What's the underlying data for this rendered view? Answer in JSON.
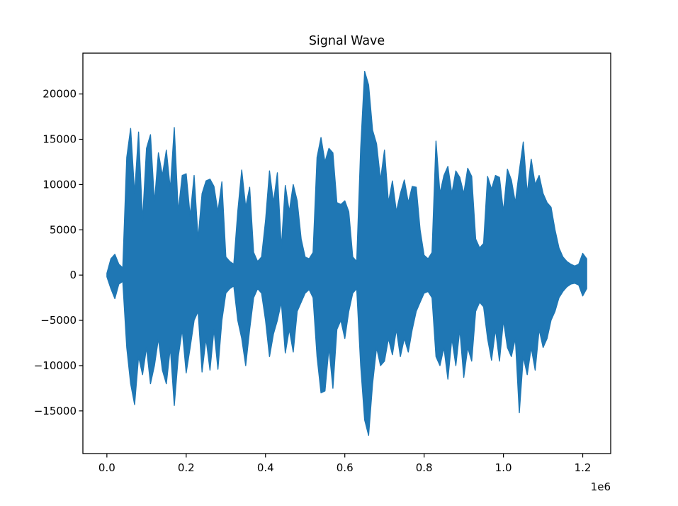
{
  "figure": {
    "background": "#ffffff",
    "axes_background": "#ffffff",
    "spine_color": "#000000",
    "tick_color": "#000000"
  },
  "chart_data": {
    "type": "line",
    "title": "Signal Wave",
    "xlabel": "",
    "ylabel": "",
    "legend": null,
    "grid": false,
    "line_color": "#1f77b4",
    "x_axis": {
      "tick_labels": [
        "0.0",
        "0.2",
        "0.4",
        "0.6",
        "0.8",
        "1.0",
        "1.2"
      ],
      "tick_values": [
        0,
        200000,
        400000,
        600000,
        800000,
        1000000,
        1200000
      ],
      "offset_label": "1e6",
      "lim": [
        -60500,
        1270500
      ]
    },
    "y_axis": {
      "tick_labels": [
        "−15000",
        "−10000",
        "−5000",
        "0",
        "5000",
        "10000",
        "15000",
        "20000"
      ],
      "tick_values": [
        -15000,
        -10000,
        -5000,
        0,
        5000,
        10000,
        15000,
        20000
      ],
      "lim": [
        -19710,
        24510
      ]
    },
    "series": [
      {
        "name": "signal",
        "representation": "min-max amplitude envelope of dense audio waveform, x in samples",
        "x_start": 0,
        "x_step": 10000,
        "max": [
          200,
          1800,
          2300,
          1200,
          800,
          13000,
          16200,
          9000,
          15800,
          6000,
          14000,
          15500,
          8000,
          13500,
          11000,
          13800,
          9500,
          16300,
          7000,
          11000,
          11200,
          6500,
          11000,
          4000,
          9000,
          10400,
          10600,
          9800,
          7000,
          10300,
          2000,
          1500,
          1200,
          7000,
          11600,
          7500,
          9700,
          2500,
          1500,
          2000,
          6000,
          11500,
          8000,
          11300,
          3000,
          9900,
          7000,
          10000,
          8200,
          4000,
          2000,
          1800,
          2500,
          13000,
          15200,
          12500,
          14000,
          13500,
          8000,
          7800,
          8200,
          7000,
          2000,
          1500,
          14000,
          22500,
          21000,
          16000,
          14500,
          10500,
          13800,
          8000,
          10400,
          7000,
          9000,
          10500,
          8000,
          9800,
          9700,
          5000,
          2200,
          1800,
          2500,
          14800,
          9000,
          11000,
          12000,
          9000,
          11500,
          10800,
          9000,
          11800,
          10900,
          4000,
          3000,
          3500,
          10900,
          9500,
          11000,
          10800,
          7000,
          11700,
          10500,
          8000,
          11500,
          14700,
          9000,
          12800,
          10000,
          11000,
          9000,
          8000,
          7500,
          5000,
          3000,
          2000,
          1500,
          1200,
          1000,
          1200,
          2400,
          1800
        ],
        "min": [
          -200,
          -1500,
          -2600,
          -1000,
          -700,
          -8000,
          -12000,
          -14300,
          -9000,
          -11000,
          -8000,
          -12000,
          -10000,
          -7000,
          -10500,
          -12000,
          -8000,
          -14400,
          -9000,
          -6000,
          -10800,
          -8000,
          -5000,
          -4000,
          -10700,
          -7000,
          -10500,
          -6000,
          -10400,
          -5000,
          -2000,
          -1500,
          -1200,
          -5000,
          -7000,
          -10000,
          -6000,
          -2500,
          -1500,
          -2000,
          -5000,
          -9000,
          -6500,
          -5000,
          -3000,
          -8600,
          -6000,
          -8500,
          -4000,
          -3000,
          -2000,
          -1600,
          -2500,
          -9000,
          -13000,
          -12800,
          -8000,
          -12500,
          -6000,
          -5000,
          -7000,
          -4000,
          -2000,
          -1500,
          -10000,
          -16000,
          -17700,
          -12000,
          -8000,
          -10000,
          -9500,
          -7000,
          -8800,
          -6000,
          -9000,
          -7000,
          -8500,
          -6000,
          -4000,
          -3000,
          -2000,
          -1800,
          -2500,
          -9000,
          -10000,
          -8000,
          -11500,
          -7000,
          -10000,
          -6000,
          -11300,
          -8000,
          -9500,
          -4000,
          -3000,
          -3500,
          -7000,
          -9400,
          -6000,
          -9500,
          -5000,
          -8000,
          -9000,
          -7000,
          -15200,
          -9000,
          -11000,
          -8000,
          -10500,
          -6000,
          -8000,
          -7000,
          -5000,
          -4000,
          -2500,
          -1800,
          -1300,
          -1000,
          -900,
          -1100,
          -2300,
          -1500
        ]
      }
    ]
  }
}
